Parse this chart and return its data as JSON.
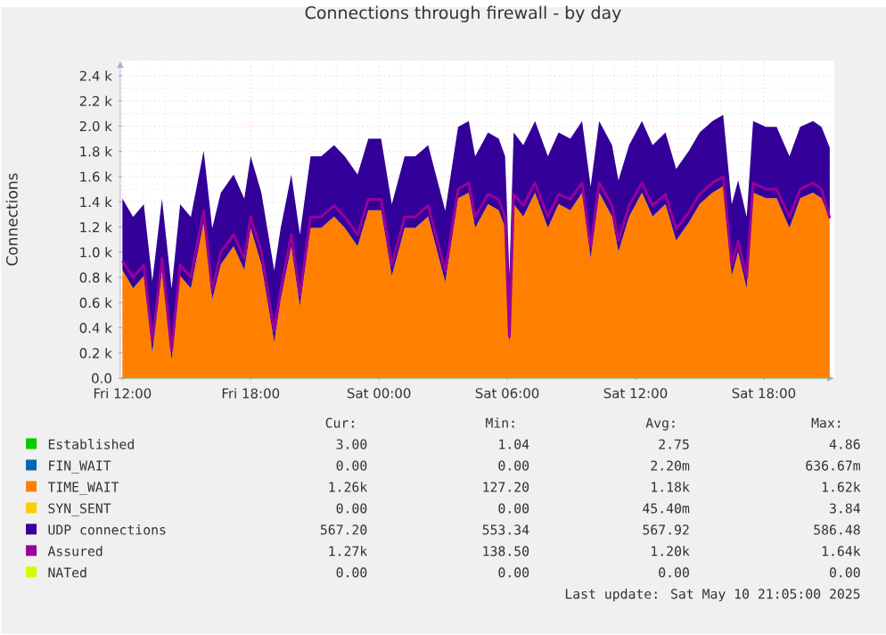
{
  "chart_data": {
    "type": "area",
    "title": "Connections through firewall - by day",
    "ylabel": "Connections",
    "stacked": true,
    "grid": true,
    "legend": "bottom",
    "xlim": [
      "2025-05-09T11:54",
      "2025-05-10T21:18"
    ],
    "xticks": [
      {
        "value": "2025-05-09T12:00",
        "label": "Fri 12:00"
      },
      {
        "value": "2025-05-09T18:00",
        "label": "Fri 18:00"
      },
      {
        "value": "2025-05-10T00:00",
        "label": "Sat 00:00"
      },
      {
        "value": "2025-05-10T06:00",
        "label": "Sat 06:00"
      },
      {
        "value": "2025-05-10T12:00",
        "label": "Sat 12:00"
      },
      {
        "value": "2025-05-10T18:00",
        "label": "Sat 18:00"
      }
    ],
    "ylim": [
      0,
      2520
    ],
    "yticks": [
      {
        "value": 0,
        "label": "0.0"
      },
      {
        "value": 200,
        "label": "0.2 k"
      },
      {
        "value": 400,
        "label": "0.4 k"
      },
      {
        "value": 600,
        "label": "0.6 k"
      },
      {
        "value": 800,
        "label": "0.8 k"
      },
      {
        "value": 1000,
        "label": "1.0 k"
      },
      {
        "value": 1200,
        "label": "1.2 k"
      },
      {
        "value": 1400,
        "label": "1.4 k"
      },
      {
        "value": 1600,
        "label": "1.6 k"
      },
      {
        "value": 1800,
        "label": "1.8 k"
      },
      {
        "value": 2000,
        "label": "2.0 k"
      },
      {
        "value": 2200,
        "label": "2.2 k"
      },
      {
        "value": 2400,
        "label": "2.4 k"
      }
    ],
    "x": [
      "2025-05-09T12:00",
      "2025-05-09T12:30",
      "2025-05-09T13:00",
      "2025-05-09T13:24",
      "2025-05-09T13:51",
      "2025-05-09T14:18",
      "2025-05-09T14:42",
      "2025-05-09T15:12",
      "2025-05-09T15:48",
      "2025-05-09T16:12",
      "2025-05-09T16:36",
      "2025-05-09T17:12",
      "2025-05-09T17:42",
      "2025-05-09T18:00",
      "2025-05-09T18:30",
      "2025-05-09T19:06",
      "2025-05-09T19:24",
      "2025-05-09T19:54",
      "2025-05-09T20:18",
      "2025-05-09T20:48",
      "2025-05-09T21:18",
      "2025-05-09T21:54",
      "2025-05-09T22:24",
      "2025-05-09T23:00",
      "2025-05-09T23:30",
      "2025-05-10T00:06",
      "2025-05-10T00:36",
      "2025-05-10T01:12",
      "2025-05-10T01:42",
      "2025-05-10T02:18",
      "2025-05-10T03:06",
      "2025-05-10T03:42",
      "2025-05-10T04:12",
      "2025-05-10T04:30",
      "2025-05-10T05:06",
      "2025-05-10T05:36",
      "2025-05-10T05:54",
      "2025-05-10T06:06",
      "2025-05-10T06:18",
      "2025-05-10T06:45",
      "2025-05-10T07:18",
      "2025-05-10T07:54",
      "2025-05-10T08:24",
      "2025-05-10T08:57",
      "2025-05-10T09:30",
      "2025-05-10T09:54",
      "2025-05-10T10:18",
      "2025-05-10T10:54",
      "2025-05-10T11:12",
      "2025-05-10T11:42",
      "2025-05-10T12:18",
      "2025-05-10T12:48",
      "2025-05-10T13:24",
      "2025-05-10T13:54",
      "2025-05-10T14:30",
      "2025-05-10T15:00",
      "2025-05-10T15:36",
      "2025-05-10T16:06",
      "2025-05-10T16:30",
      "2025-05-10T16:48",
      "2025-05-10T17:12",
      "2025-05-10T17:30",
      "2025-05-10T18:06",
      "2025-05-10T18:36",
      "2025-05-10T19:12",
      "2025-05-10T19:42",
      "2025-05-10T20:18",
      "2025-05-10T20:42",
      "2025-05-10T21:05"
    ],
    "series": [
      {
        "name": "Established",
        "color": "#00cc00",
        "values": [
          3,
          3,
          3,
          3,
          3,
          3,
          3,
          3,
          3,
          3,
          3,
          3,
          3,
          3,
          3,
          3,
          3,
          3,
          3,
          3,
          3,
          3,
          3,
          3,
          3,
          3,
          3,
          3,
          3,
          3,
          3,
          3,
          3,
          3,
          3,
          3,
          3,
          3,
          3,
          3,
          3,
          3,
          3,
          3,
          3,
          3,
          3,
          3,
          3,
          3,
          3,
          3,
          3,
          3,
          3,
          3,
          3,
          3,
          3,
          3,
          3,
          3,
          3,
          3,
          3,
          3,
          3,
          3,
          3
        ]
      },
      {
        "name": "FIN_WAIT",
        "color": "#0066b3",
        "values": [
          null,
          null,
          null,
          null,
          null,
          null,
          null,
          null,
          null,
          null,
          null,
          null,
          null,
          null,
          null,
          null,
          null,
          null,
          null,
          null,
          null,
          null,
          null,
          null,
          null,
          null,
          null,
          null,
          null,
          null,
          null,
          null,
          null,
          null,
          null,
          null,
          null,
          null,
          null,
          null,
          null,
          null,
          null,
          null,
          null,
          null,
          null,
          null,
          null,
          null,
          null,
          null,
          null,
          null,
          null,
          null,
          null,
          null,
          null,
          null,
          null,
          null,
          null,
          null,
          null,
          null,
          null,
          null,
          null
        ]
      },
      {
        "name": "TIME_WAIT",
        "color": "#ff8000",
        "values": [
          855,
          710,
          810,
          200,
          855,
          140,
          810,
          710,
          1235,
          620,
          900,
          1045,
          855,
          1190,
          900,
          285,
          620,
          1045,
          570,
          1190,
          1190,
          1280,
          1190,
          1045,
          1330,
          1330,
          810,
          1190,
          1190,
          1280,
          760,
          1425,
          1470,
          1190,
          1380,
          1330,
          1190,
          240,
          1380,
          1280,
          1470,
          1190,
          1380,
          1330,
          1470,
          950,
          1470,
          1280,
          1000,
          1280,
          1470,
          1280,
          1380,
          1090,
          1235,
          1380,
          1470,
          1520,
          810,
          1000,
          710,
          1470,
          1425,
          1425,
          1190,
          1425,
          1470,
          1425,
          1260
        ]
      },
      {
        "name": "SYN_SENT",
        "color": "#ffcc00",
        "values": [
          null,
          null,
          null,
          null,
          null,
          null,
          null,
          null,
          null,
          null,
          null,
          null,
          null,
          null,
          null,
          null,
          null,
          null,
          null,
          null,
          null,
          null,
          null,
          null,
          null,
          null,
          null,
          null,
          null,
          null,
          null,
          null,
          null,
          null,
          null,
          null,
          null,
          null,
          null,
          null,
          null,
          null,
          null,
          null,
          null,
          null,
          null,
          null,
          null,
          null,
          null,
          null,
          null,
          null,
          null,
          null,
          null,
          null,
          null,
          null,
          null,
          null,
          null,
          null,
          null,
          null,
          null,
          null,
          null
        ]
      },
      {
        "name": "UDP connections",
        "color": "#330099",
        "values": [
          567,
          567,
          567,
          567,
          567,
          567,
          567,
          567,
          567,
          567,
          567,
          567,
          567,
          567,
          567,
          567,
          567,
          567,
          567,
          567,
          567,
          567,
          567,
          567,
          567,
          567,
          567,
          567,
          567,
          567,
          567,
          567,
          567,
          567,
          567,
          567,
          567,
          567,
          567,
          567,
          567,
          567,
          567,
          567,
          567,
          567,
          567,
          567,
          567,
          567,
          567,
          567,
          567,
          567,
          567,
          567,
          567,
          567,
          567,
          567,
          567,
          567,
          567,
          567,
          567,
          567,
          567,
          567,
          567
        ]
      },
      {
        "name": "Assured",
        "color": "#990099",
        "type": "line",
        "values": [
          930,
          800,
          900,
          300,
          950,
          220,
          900,
          800,
          1330,
          700,
          1000,
          1140,
          950,
          1280,
          1000,
          380,
          700,
          1140,
          660,
          1280,
          1280,
          1370,
          1280,
          1140,
          1420,
          1420,
          900,
          1280,
          1280,
          1370,
          850,
          1500,
          1550,
          1280,
          1460,
          1420,
          1280,
          330,
          1460,
          1370,
          1550,
          1280,
          1460,
          1420,
          1550,
          1040,
          1550,
          1370,
          1090,
          1370,
          1550,
          1370,
          1460,
          1180,
          1320,
          1460,
          1550,
          1600,
          900,
          1090,
          800,
          1550,
          1500,
          1500,
          1280,
          1500,
          1550,
          1500,
          1270
        ]
      },
      {
        "name": "NATed",
        "color": "#ccff00",
        "type": "line",
        "values": [
          null,
          null,
          null,
          null,
          null,
          null,
          null,
          null,
          null,
          null,
          null,
          null,
          null,
          null,
          null,
          null,
          null,
          null,
          null,
          null,
          null,
          null,
          null,
          null,
          null,
          null,
          null,
          null,
          null,
          null,
          null,
          null,
          null,
          null,
          null,
          null,
          null,
          null,
          null,
          null,
          null,
          null,
          null,
          null,
          null,
          null,
          null,
          null,
          null,
          null,
          null,
          null,
          null,
          null,
          null,
          null,
          null,
          null,
          null,
          null,
          null,
          null,
          null,
          null,
          null,
          null,
          null,
          null,
          null
        ]
      }
    ],
    "annotations": [
      "Cur:",
      "Min:",
      "Avg:",
      "Max:",
      "3.00",
      "1.04",
      "2.75",
      "4.86",
      "0.00",
      "0.00",
      "2.20m",
      "636.67m",
      "1.26k",
      "127.20",
      "1.18k",
      "1.62k",
      "0.00",
      "0.00",
      "45.40m",
      "3.84",
      "567.20",
      "553.34",
      "567.92",
      "586.48",
      "1.27k",
      "138.50",
      "1.20k",
      "1.64k",
      "0.00",
      "0.00",
      "0.00",
      "0.00",
      "Last update:  Sat May 10 21:05:00 2025"
    ]
  }
}
